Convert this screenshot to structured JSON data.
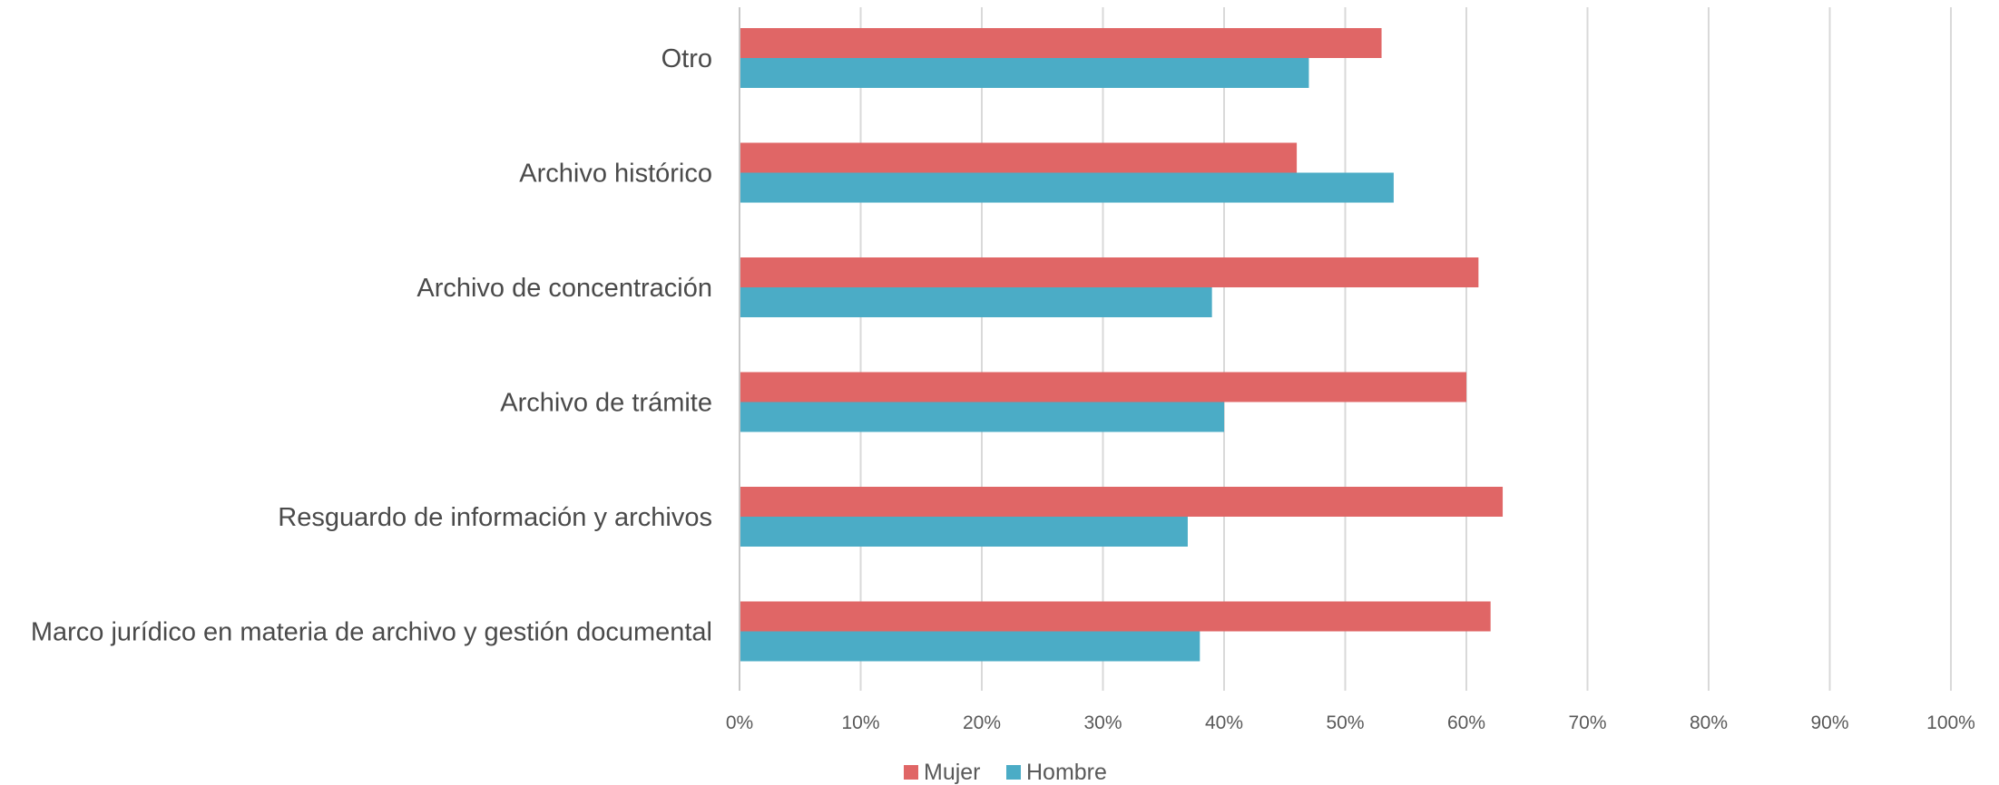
{
  "chart_data": {
    "type": "bar",
    "orientation": "horizontal",
    "categories": [
      "Otro",
      "Archivo histórico",
      "Archivo de concentración",
      "Archivo de trámite",
      "Resguardo de información y archivos",
      "Marco jurídico en materia de archivo y gestión documental"
    ],
    "series": [
      {
        "name": "Mujer",
        "color": "#e06666",
        "values": [
          53,
          46,
          61,
          60,
          63,
          62
        ]
      },
      {
        "name": "Hombre",
        "color": "#4bacc6",
        "values": [
          47,
          54,
          39,
          40,
          37,
          38
        ]
      }
    ],
    "xlim": [
      0,
      100
    ],
    "x_ticks": [
      "0%",
      "10%",
      "20%",
      "30%",
      "40%",
      "50%",
      "60%",
      "70%",
      "80%",
      "90%",
      "100%"
    ],
    "grid": "vertical",
    "legend_position": "bottom",
    "title": "",
    "xlabel": "",
    "ylabel": ""
  }
}
